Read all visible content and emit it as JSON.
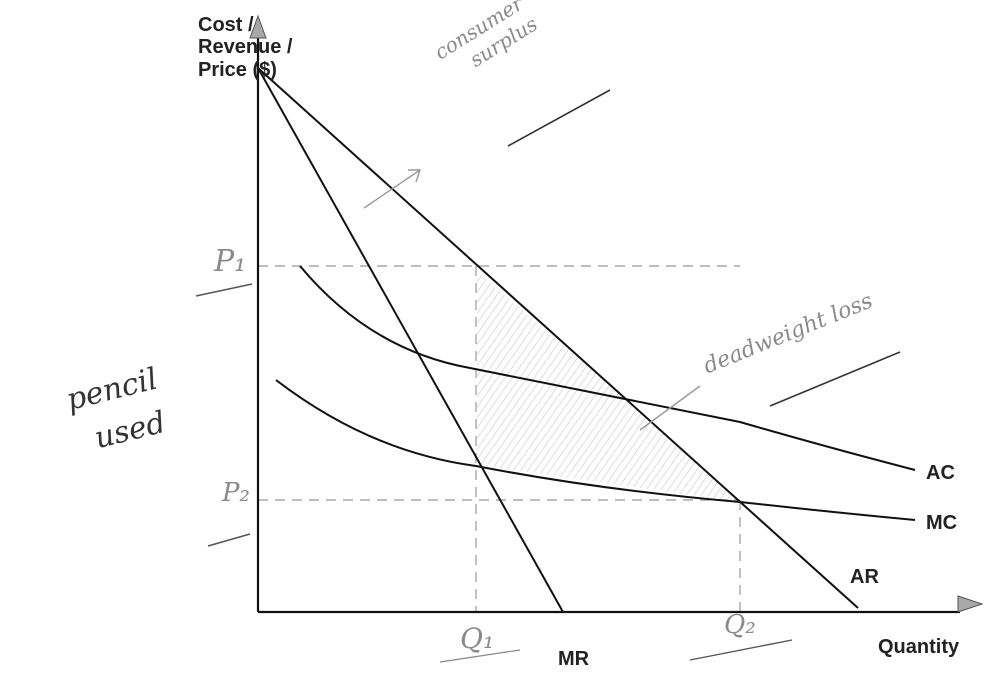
{
  "axes": {
    "y_label": [
      "Cost /",
      "Revenue /",
      "Price ($)"
    ],
    "x_label": "Quantity"
  },
  "curves": {
    "ac": "AC",
    "mc": "MC",
    "ar": "AR",
    "mr": "MR"
  },
  "handwritten": {
    "p1": "P₁",
    "p2": "P₂",
    "q1": "Q₁",
    "q2": "Q₂",
    "consumer_surplus": [
      "consumer",
      "surplus"
    ],
    "deadweight_loss": "deadweight loss",
    "pencil_note": [
      "pencil",
      "used"
    ]
  }
}
